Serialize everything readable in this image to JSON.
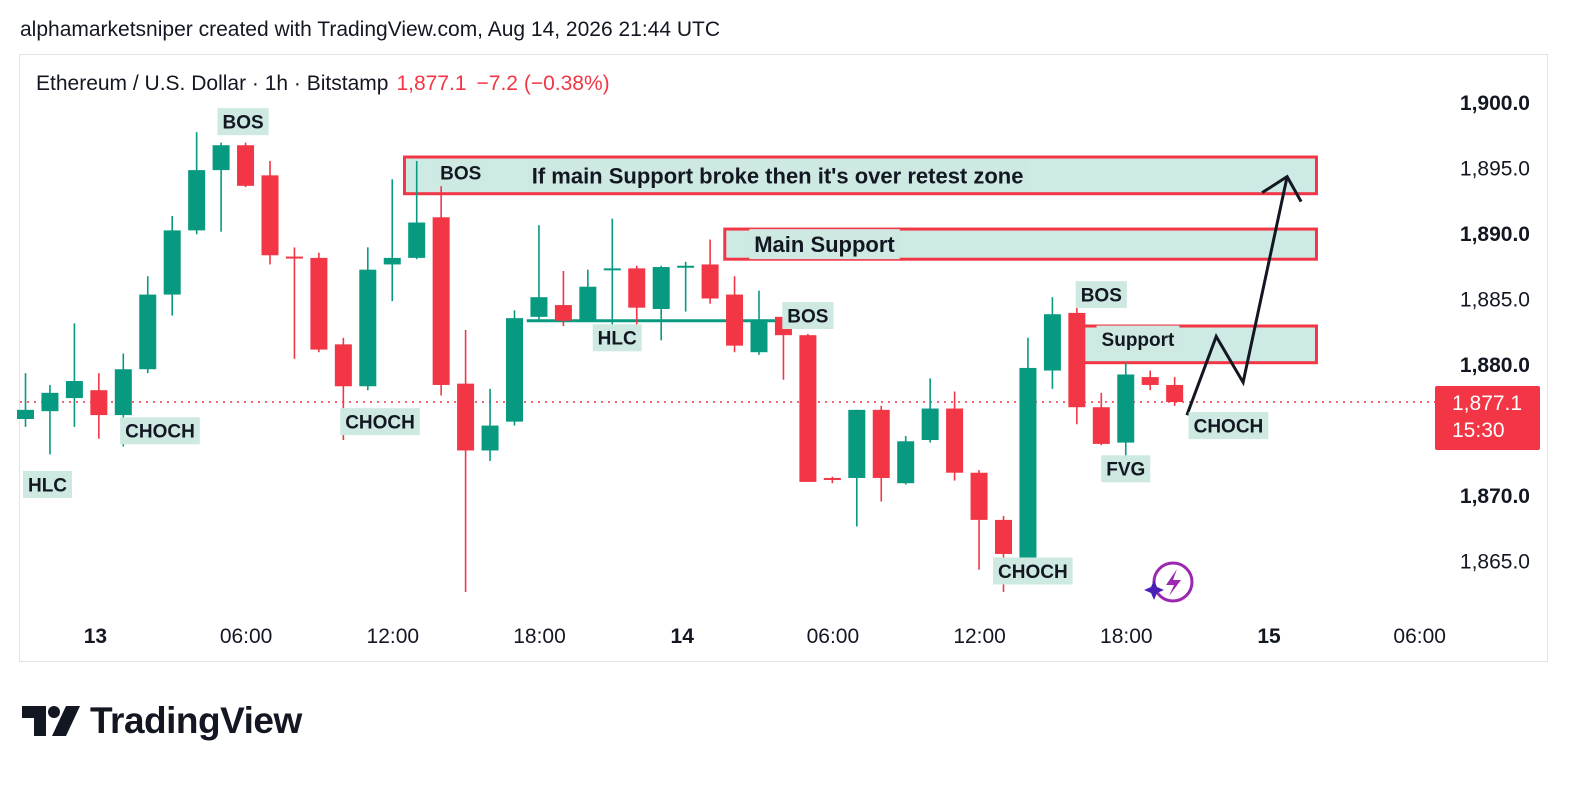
{
  "header": {
    "text": "alphamarketsniper created with TradingView.com, Aug 14, 2026 21:44 UTC"
  },
  "symbol": {
    "name": "Ethereum / U.S. Dollar · 1h · Bitstamp",
    "price": "1,877.1",
    "change": "−7.2 (−0.38%)"
  },
  "price_badge": {
    "price": "1,877.1",
    "countdown": "15:30"
  },
  "logo": {
    "text": "TradingView"
  },
  "colors": {
    "up": "#089981",
    "down": "#f23645",
    "zone_fill": "#cdeae4",
    "zone_border": "#f23645",
    "label_bg": "#cde9e2"
  },
  "chart_data": {
    "type": "candlestick",
    "current_price": 1877.1,
    "ylim": [
      1861,
      1904
    ],
    "y_ticks": [
      {
        "value": 1900,
        "label": "1,900.0",
        "bold": true
      },
      {
        "value": 1895,
        "label": "1,895.0",
        "bold": false
      },
      {
        "value": 1890,
        "label": "1,890.0",
        "bold": true
      },
      {
        "value": 1885,
        "label": "1,885.0",
        "bold": false
      },
      {
        "value": 1880,
        "label": "1,880.0",
        "bold": true
      },
      {
        "value": 1870,
        "label": "1,870.0",
        "bold": true
      },
      {
        "value": 1865,
        "label": "1,865.0",
        "bold": false
      }
    ],
    "x_ticks": [
      {
        "index": 2,
        "label": "13",
        "bold": true
      },
      {
        "index": 8,
        "label": "06:00",
        "bold": false
      },
      {
        "index": 14,
        "label": "12:00",
        "bold": false
      },
      {
        "index": 20,
        "label": "18:00",
        "bold": false
      },
      {
        "index": 26,
        "label": "14",
        "bold": true
      },
      {
        "index": 32,
        "label": "06:00",
        "bold": false
      },
      {
        "index": 38,
        "label": "12:00",
        "bold": false
      },
      {
        "index": 44,
        "label": "18:00",
        "bold": false
      },
      {
        "index": 50,
        "label": "15",
        "bold": true
      },
      {
        "index": 56,
        "label": "06:00",
        "bold": false
      }
    ],
    "candles": [
      {
        "o": 1875.8,
        "h": 1879.3,
        "l": 1875.2,
        "c": 1876.5
      },
      {
        "o": 1876.4,
        "h": 1878.4,
        "l": 1873.1,
        "c": 1877.8
      },
      {
        "o": 1877.4,
        "h": 1883.1,
        "l": 1875.2,
        "c": 1878.7
      },
      {
        "o": 1878.0,
        "h": 1879.3,
        "l": 1874.3,
        "c": 1876.1
      },
      {
        "o": 1876.1,
        "h": 1880.8,
        "l": 1873.7,
        "c": 1879.6
      },
      {
        "o": 1879.6,
        "h": 1886.7,
        "l": 1879.3,
        "c": 1885.3
      },
      {
        "o": 1885.3,
        "h": 1891.3,
        "l": 1883.7,
        "c": 1890.2
      },
      {
        "o": 1890.2,
        "h": 1897.7,
        "l": 1889.9,
        "c": 1894.8
      },
      {
        "o": 1894.8,
        "h": 1896.9,
        "l": 1890.1,
        "c": 1896.7
      },
      {
        "o": 1896.7,
        "h": 1896.9,
        "l": 1893.5,
        "c": 1893.6
      },
      {
        "o": 1894.4,
        "h": 1895.5,
        "l": 1887.6,
        "c": 1888.3
      },
      {
        "o": 1888.2,
        "h": 1888.9,
        "l": 1880.4,
        "c": 1888.1
      },
      {
        "o": 1888.1,
        "h": 1888.5,
        "l": 1880.9,
        "c": 1881.1
      },
      {
        "o": 1881.5,
        "h": 1882.0,
        "l": 1874.2,
        "c": 1878.3
      },
      {
        "o": 1878.3,
        "h": 1888.9,
        "l": 1878.0,
        "c": 1887.2
      },
      {
        "o": 1887.6,
        "h": 1894.1,
        "l": 1884.8,
        "c": 1888.1
      },
      {
        "o": 1888.1,
        "h": 1895.5,
        "l": 1888.0,
        "c": 1890.8
      },
      {
        "o": 1891.2,
        "h": 1894.2,
        "l": 1877.6,
        "c": 1878.4
      },
      {
        "o": 1878.5,
        "h": 1882.6,
        "l": 1862.6,
        "c": 1873.4
      },
      {
        "o": 1873.4,
        "h": 1878.1,
        "l": 1872.6,
        "c": 1875.3
      },
      {
        "o": 1875.6,
        "h": 1884.1,
        "l": 1875.3,
        "c": 1883.5
      },
      {
        "o": 1883.6,
        "h": 1890.6,
        "l": 1883.4,
        "c": 1885.1
      },
      {
        "o": 1884.5,
        "h": 1887.1,
        "l": 1882.9,
        "c": 1883.3
      },
      {
        "o": 1883.3,
        "h": 1887.2,
        "l": 1883.3,
        "c": 1885.9
      },
      {
        "o": 1887.2,
        "h": 1891.1,
        "l": 1882.5,
        "c": 1887.3
      },
      {
        "o": 1887.3,
        "h": 1887.5,
        "l": 1881.8,
        "c": 1884.3
      },
      {
        "o": 1884.2,
        "h": 1887.5,
        "l": 1881.8,
        "c": 1887.4
      },
      {
        "o": 1887.4,
        "h": 1887.8,
        "l": 1884.0,
        "c": 1887.5
      },
      {
        "o": 1887.6,
        "h": 1889.5,
        "l": 1884.6,
        "c": 1885.0
      },
      {
        "o": 1885.3,
        "h": 1886.7,
        "l": 1880.9,
        "c": 1881.4
      },
      {
        "o": 1880.9,
        "h": 1885.6,
        "l": 1880.7,
        "c": 1883.4
      },
      {
        "o": 1883.6,
        "h": 1883.9,
        "l": 1878.8,
        "c": 1882.2
      },
      {
        "o": 1882.2,
        "h": 1882.3,
        "l": 1871.0,
        "c": 1871.0
      },
      {
        "o": 1871.3,
        "h": 1871.4,
        "l": 1870.9,
        "c": 1871.2
      },
      {
        "o": 1871.3,
        "h": 1876.5,
        "l": 1867.6,
        "c": 1876.5
      },
      {
        "o": 1876.5,
        "h": 1876.8,
        "l": 1869.5,
        "c": 1871.3
      },
      {
        "o": 1870.9,
        "h": 1874.5,
        "l": 1870.8,
        "c": 1874.1
      },
      {
        "o": 1874.2,
        "h": 1878.9,
        "l": 1874.0,
        "c": 1876.6
      },
      {
        "o": 1876.6,
        "h": 1877.9,
        "l": 1871.1,
        "c": 1871.7
      },
      {
        "o": 1871.7,
        "h": 1871.9,
        "l": 1864.3,
        "c": 1868.1
      },
      {
        "o": 1868.1,
        "h": 1868.4,
        "l": 1862.6,
        "c": 1865.5
      },
      {
        "o": 1865.2,
        "h": 1882.0,
        "l": 1864.9,
        "c": 1879.7
      },
      {
        "o": 1879.5,
        "h": 1885.1,
        "l": 1878.1,
        "c": 1883.8
      },
      {
        "o": 1883.9,
        "h": 1885.2,
        "l": 1875.4,
        "c": 1876.7
      },
      {
        "o": 1876.7,
        "h": 1877.8,
        "l": 1873.8,
        "c": 1873.9
      },
      {
        "o": 1874.0,
        "h": 1880.1,
        "l": 1872.8,
        "c": 1879.2
      },
      {
        "o": 1879.0,
        "h": 1879.5,
        "l": 1878.0,
        "c": 1878.4
      },
      {
        "o": 1878.4,
        "h": 1879.0,
        "l": 1876.8,
        "c": 1877.1
      }
    ],
    "zones": [
      {
        "label": "If main Support broke then it's over retest zone",
        "from_index": 15.5,
        "to_index": 52.8,
        "top": 1895.8,
        "bottom": 1893.0
      },
      {
        "label": "Main Support",
        "from_index": 28.6,
        "to_index": 52.8,
        "top": 1890.3,
        "bottom": 1888.0
      },
      {
        "label": "Support",
        "from_index": 43.0,
        "to_index": 52.8,
        "top": 1882.9,
        "bottom": 1880.1
      }
    ],
    "labels": [
      {
        "text": "BOS",
        "index": 8.9,
        "price": 1898.5
      },
      {
        "text": "BOS",
        "index": 17.8,
        "price": 1894.6
      },
      {
        "text": "HLC",
        "index": 0.9,
        "price": 1870.8
      },
      {
        "text": "CHOCH",
        "index": 5.5,
        "price": 1874.9
      },
      {
        "text": "CHOCH",
        "index": 14.5,
        "price": 1875.6
      },
      {
        "text": "HLC",
        "index": 24.2,
        "price": 1882.0
      },
      {
        "text": "BOS",
        "index": 32.0,
        "price": 1883.7
      },
      {
        "text": "CHOCH",
        "index": 41.2,
        "price": 1864.2
      },
      {
        "text": "BOS",
        "index": 44.0,
        "price": 1885.3
      },
      {
        "text": "Support",
        "index": 45.5,
        "price": 1881.9
      },
      {
        "text": "FVG",
        "index": 45.0,
        "price": 1872.0
      },
      {
        "text": "CHOCH",
        "index": 49.2,
        "price": 1875.3
      }
    ],
    "hlc_line": {
      "from_index": 20.5,
      "to_index": 31.5,
      "price": 1883.3
    },
    "path": [
      {
        "index": 47.5,
        "price": 1876.1
      },
      {
        "index": 48.7,
        "price": 1882.1
      },
      {
        "index": 49.8,
        "price": 1878.6
      },
      {
        "index": 51.6,
        "price": 1894.3
      }
    ]
  }
}
